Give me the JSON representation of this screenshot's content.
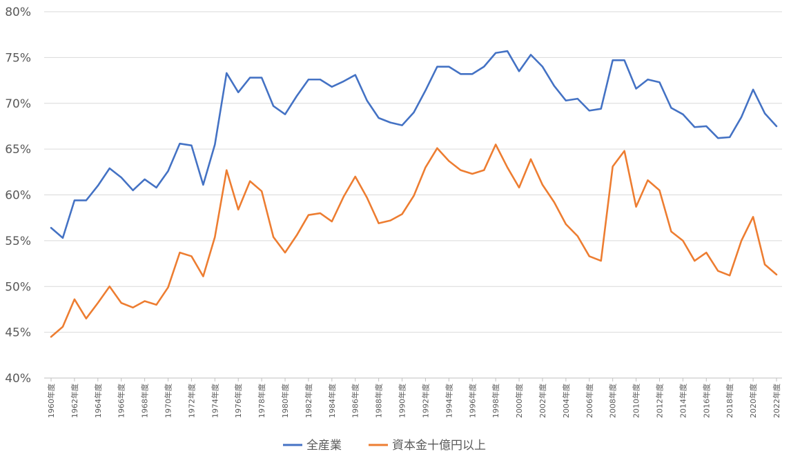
{
  "chart_data": {
    "type": "line",
    "title": "",
    "xlabel": "",
    "ylabel": "",
    "ylim": [
      40,
      80
    ],
    "y_ticks": [
      "40%",
      "45%",
      "50%",
      "55%",
      "60%",
      "65%",
      "70%",
      "75%",
      "80%"
    ],
    "grid": true,
    "legend_position": "bottom",
    "categories": [
      "1960年度",
      "1961年度",
      "1962年度",
      "1963年度",
      "1964年度",
      "1965年度",
      "1966年度",
      "1967年度",
      "1968年度",
      "1969年度",
      "1970年度",
      "1971年度",
      "1972年度",
      "1973年度",
      "1974年度",
      "1975年度",
      "1976年度",
      "1977年度",
      "1978年度",
      "1979年度",
      "1980年度",
      "1981年度",
      "1982年度",
      "1983年度",
      "1984年度",
      "1985年度",
      "1986年度",
      "1987年度",
      "1988年度",
      "1989年度",
      "1990年度",
      "1991年度",
      "1992年度",
      "1993年度",
      "1994年度",
      "1995年度",
      "1996年度",
      "1997年度",
      "1998年度",
      "1999年度",
      "2000年度",
      "2001年度",
      "2002年度",
      "2003年度",
      "2004年度",
      "2005年度",
      "2006年度",
      "2007年度",
      "2008年度",
      "2009年度",
      "2010年度",
      "2011年度",
      "2012年度",
      "2013年度",
      "2014年度",
      "2015年度",
      "2016年度",
      "2017年度",
      "2018年度",
      "2019年度",
      "2020年度",
      "2021年度",
      "2022年度"
    ],
    "x_tick_labels": [
      "1960年度",
      "1962年度",
      "1964年度",
      "1966年度",
      "1968年度",
      "1970年度",
      "1972年度",
      "1974年度",
      "1976年度",
      "1978年度",
      "1980年度",
      "1982年度",
      "1984年度",
      "1986年度",
      "1988年度",
      "1990年度",
      "1992年度",
      "1994年度",
      "1996年度",
      "1998年度",
      "2000年度",
      "2002年度",
      "2004年度",
      "2006年度",
      "2008年度",
      "2010年度",
      "2012年度",
      "2014年度",
      "2016年度",
      "2018年度",
      "2020年度",
      "2022年度"
    ],
    "series": [
      {
        "name": "全産業",
        "color": "#4472C4",
        "values": [
          56.4,
          55.3,
          59.4,
          59.4,
          61.0,
          62.9,
          61.9,
          60.5,
          61.7,
          60.8,
          62.6,
          65.6,
          65.4,
          61.1,
          65.5,
          73.3,
          71.2,
          72.8,
          72.8,
          69.7,
          68.8,
          70.8,
          72.6,
          72.6,
          71.8,
          72.4,
          73.1,
          70.3,
          68.4,
          67.9,
          67.6,
          69.0,
          71.4,
          74.0,
          74.0,
          73.2,
          73.2,
          74.0,
          75.5,
          75.7,
          73.5,
          75.3,
          74.0,
          71.9,
          70.3,
          70.5,
          69.2,
          69.4,
          74.7,
          74.7,
          71.6,
          72.6,
          72.3,
          69.5,
          68.8,
          67.4,
          67.5,
          66.2,
          66.3,
          68.5,
          71.5,
          68.9,
          67.5
        ]
      },
      {
        "name": "資本金十億円以上",
        "color": "#ED7D31",
        "values": [
          44.5,
          45.6,
          48.6,
          46.5,
          48.2,
          50.0,
          48.2,
          47.7,
          48.4,
          48.0,
          49.9,
          53.7,
          53.3,
          51.1,
          55.4,
          62.7,
          58.4,
          61.5,
          60.4,
          55.4,
          53.7,
          55.6,
          57.8,
          58.0,
          57.1,
          59.8,
          62.0,
          59.7,
          56.9,
          57.2,
          57.9,
          59.9,
          63.0,
          65.1,
          63.7,
          62.7,
          62.3,
          62.7,
          65.5,
          63.0,
          60.8,
          63.9,
          61.1,
          59.2,
          56.8,
          55.5,
          53.3,
          52.8,
          63.1,
          64.8,
          58.7,
          61.6,
          60.5,
          56.0,
          55.0,
          52.8,
          53.7,
          51.7,
          51.2,
          55.0,
          57.6,
          52.4,
          51.3
        ]
      }
    ]
  }
}
